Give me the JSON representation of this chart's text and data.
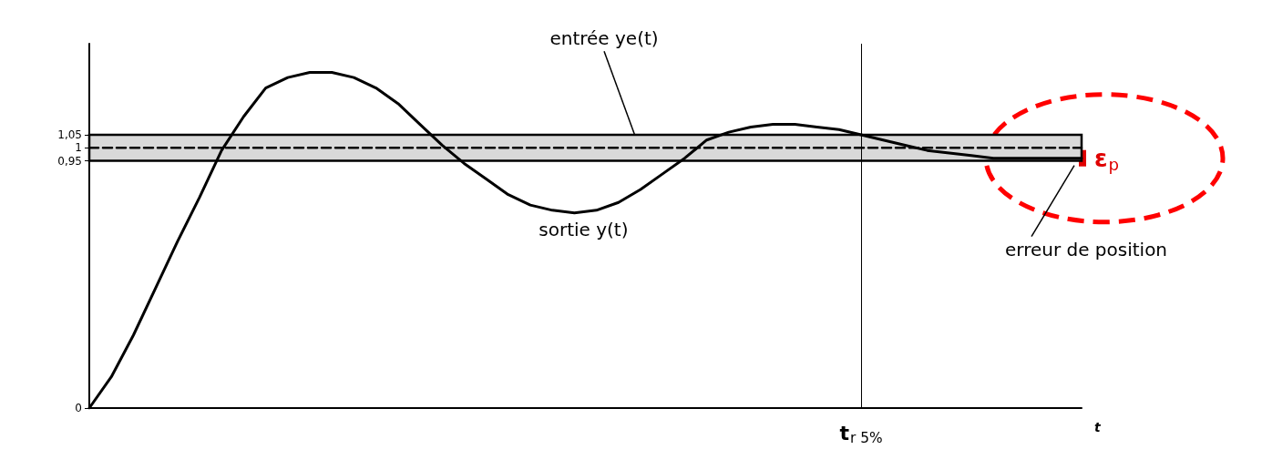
{
  "chart_data": {
    "type": "line",
    "xlabel": "t",
    "categories": [
      null,
      null,
      null,
      null,
      null,
      null,
      null,
      null,
      null,
      null,
      null,
      null,
      null,
      null,
      null,
      null,
      null,
      null,
      null,
      null,
      null,
      null,
      null,
      null,
      null,
      null,
      null,
      null,
      null,
      null,
      null,
      null,
      null,
      null,
      null,
      "t$_{r 5%}$",
      null,
      null,
      null,
      null,
      null,
      null,
      null,
      null,
      null,
      null
    ],
    "series": [
      {
        "name": "entrée ye(t)",
        "color": "#000000",
        "line_style": "dashed",
        "values": [
          1,
          1,
          1,
          1,
          1,
          1,
          1,
          1,
          1,
          1,
          1,
          1,
          1,
          1,
          1,
          1,
          1,
          1,
          1,
          1,
          1,
          1,
          1,
          1,
          1,
          1,
          1,
          1,
          1,
          1,
          1,
          1,
          1,
          1,
          1,
          1,
          1,
          1,
          1,
          1,
          1,
          1,
          1,
          1,
          1,
          1
        ]
      },
      {
        "name": "sortie y(t)",
        "color": "#000000",
        "line_style": "solid",
        "values": [
          0,
          0.12,
          0.28,
          0.46,
          0.64,
          0.81,
          0.99,
          1.12,
          1.23,
          1.27,
          1.29,
          1.29,
          1.27,
          1.23,
          1.17,
          1.09,
          1.01,
          0.94,
          0.88,
          0.82,
          0.78,
          0.76,
          0.75,
          0.76,
          0.79,
          0.84,
          0.9,
          0.96,
          1.03,
          1.06,
          1.08,
          1.09,
          1.09,
          1.08,
          1.07,
          1.05,
          1.03,
          1.01,
          0.99,
          0.98,
          0.97,
          0.96,
          0.96,
          0.96,
          0.96,
          0.96
        ]
      }
    ],
    "ylim": [
      0,
      1.4
    ],
    "yticks": [
      0,
      {
        "value": 0.95,
        "label": "0,95"
      },
      1,
      {
        "value": 1.05,
        "label": "1,05"
      }
    ],
    "bands": [
      {
        "axis": "y",
        "from": 0.95,
        "to": 1.05,
        "color": "#d9d9d9"
      }
    ],
    "ref_lines": [
      {
        "axis": "x",
        "value": "t$_{r 5%}$"
      }
    ],
    "annotations": [
      "ε$_{p}$",
      "erreur de position"
    ],
    "grid": false,
    "legend": false,
    "marker": "none"
  }
}
